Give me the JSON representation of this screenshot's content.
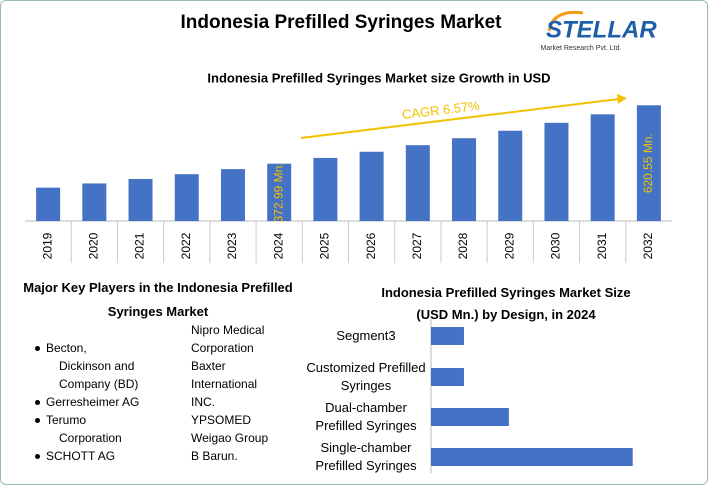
{
  "title": "Indonesia Prefilled Syringes Market",
  "logo": {
    "name": "STELLAR",
    "tagline": "Market Research Pvt. Ltd."
  },
  "chart_data": [
    {
      "type": "bar",
      "title": "Indonesia Prefilled Syringes Market size Growth in USD",
      "categories": [
        "2019",
        "2020",
        "2021",
        "2022",
        "2023",
        "2024",
        "2025",
        "2026",
        "2027",
        "2028",
        "2029",
        "2030",
        "2031",
        "2032"
      ],
      "values": [
        271.4,
        289.2,
        308.2,
        328.4,
        350.0,
        372.99,
        397.5,
        423.6,
        451.4,
        481.1,
        512.7,
        546.4,
        582.3,
        620.55
      ],
      "value_labels": [
        null,
        null,
        null,
        null,
        null,
        "372.99 Mn.",
        null,
        null,
        null,
        null,
        null,
        null,
        null,
        "620.55 Mn."
      ],
      "annotation": "CAGR 6.57%",
      "color": "#4472c4",
      "ylim": [
        130,
        660
      ]
    },
    {
      "type": "hbar",
      "title": "Indonesia Prefilled Syringes Market Size (USD Mn.) by Design, in 2024",
      "categories": [
        "Segment3",
        "Customized Prefilled Syringes",
        "Dual-chamber Prefilled Syringes",
        "Single-chamber Prefilled Syringes"
      ],
      "values": [
        35.6,
        35.6,
        84.1,
        217.8
      ],
      "color": "#4472c4",
      "xlim": [
        0,
        230
      ]
    }
  ],
  "key_players": {
    "title": "Major Key Players in the Indonesia Prefilled Syringes Market",
    "bulleted": [
      "Becton, Dickinson and Company (BD)",
      "Gerresheimer AG",
      "Terumo Corporation",
      "SCHOTT AG"
    ],
    "other": [
      "Nipro Medical Corporation",
      "Baxter International INC.",
      "YPSOMED",
      "Weigao Group",
      "B Barun."
    ]
  }
}
